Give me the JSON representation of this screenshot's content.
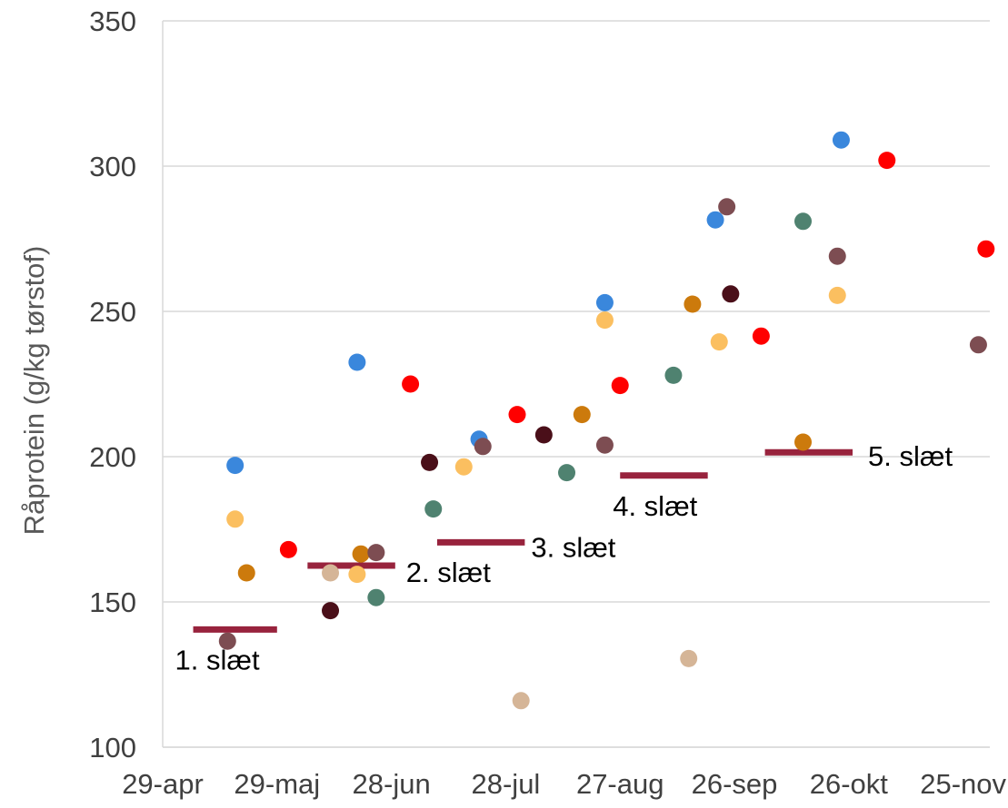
{
  "chart_data": {
    "type": "scatter",
    "title": "",
    "xlabel": "",
    "ylabel": "Råprotein (g/kg tørstof)",
    "x_axis_type": "date",
    "xlim": [
      "2023-04-29",
      "2023-12-02"
    ],
    "ylim": [
      100,
      350
    ],
    "y_ticks": [
      100,
      150,
      200,
      250,
      300,
      350
    ],
    "x_ticks": [
      {
        "date": "2023-04-29",
        "label": "29-apr"
      },
      {
        "date": "2023-05-29",
        "label": "29-maj"
      },
      {
        "date": "2023-06-28",
        "label": "28-jun"
      },
      {
        "date": "2023-07-28",
        "label": "28-jul"
      },
      {
        "date": "2023-08-27",
        "label": "27-aug"
      },
      {
        "date": "2023-09-26",
        "label": "26-sep"
      },
      {
        "date": "2023-10-26",
        "label": "26-okt"
      },
      {
        "date": "2023-11-25",
        "label": "25-nov"
      }
    ],
    "grid": {
      "horizontal": true,
      "vertical": false
    },
    "legend": "none",
    "colors": {
      "blue": "#3a87dc",
      "light_orange": "#fbbf60",
      "orange": "#cc7a0c",
      "red": "#ff0000",
      "mauve": "#7d4d52",
      "tan": "#d5b597",
      "dark_brown": "#4a0f19",
      "teal": "#4f8270",
      "cut_line": "#98233d"
    },
    "points": [
      {
        "x": "2023-05-18",
        "y": 197,
        "color": "blue"
      },
      {
        "x": "2023-05-18",
        "y": 178.5,
        "color": "light_orange"
      },
      {
        "x": "2023-05-21",
        "y": 160,
        "color": "orange"
      },
      {
        "x": "2023-05-16",
        "y": 136.5,
        "color": "mauve"
      },
      {
        "x": "2023-06-01",
        "y": 168,
        "color": "red"
      },
      {
        "x": "2023-06-12",
        "y": 160,
        "color": "tan"
      },
      {
        "x": "2023-06-12",
        "y": 147,
        "color": "dark_brown"
      },
      {
        "x": "2023-06-19",
        "y": 232.5,
        "color": "blue"
      },
      {
        "x": "2023-06-19",
        "y": 159.5,
        "color": "light_orange"
      },
      {
        "x": "2023-06-20",
        "y": 166.5,
        "color": "orange"
      },
      {
        "x": "2023-06-24",
        "y": 167,
        "color": "mauve"
      },
      {
        "x": "2023-06-24",
        "y": 151.5,
        "color": "teal"
      },
      {
        "x": "2023-07-03",
        "y": 225,
        "color": "red"
      },
      {
        "x": "2023-07-08",
        "y": 198,
        "color": "dark_brown"
      },
      {
        "x": "2023-07-09",
        "y": 182,
        "color": "teal"
      },
      {
        "x": "2023-07-17",
        "y": 196.5,
        "color": "light_orange"
      },
      {
        "x": "2023-07-21",
        "y": 206,
        "color": "blue"
      },
      {
        "x": "2023-07-22",
        "y": 203.5,
        "color": "mauve"
      },
      {
        "x": "2023-07-31",
        "y": 214.5,
        "color": "red"
      },
      {
        "x": "2023-08-01",
        "y": 116,
        "color": "tan"
      },
      {
        "x": "2023-08-07",
        "y": 207.5,
        "color": "dark_brown"
      },
      {
        "x": "2023-08-13",
        "y": 194.5,
        "color": "teal"
      },
      {
        "x": "2023-08-17",
        "y": 214.5,
        "color": "orange"
      },
      {
        "x": "2023-08-23",
        "y": 253,
        "color": "blue"
      },
      {
        "x": "2023-08-23",
        "y": 247,
        "color": "light_orange"
      },
      {
        "x": "2023-08-23",
        "y": 204,
        "color": "mauve"
      },
      {
        "x": "2023-08-27",
        "y": 224.5,
        "color": "red"
      },
      {
        "x": "2023-09-10",
        "y": 228,
        "color": "teal"
      },
      {
        "x": "2023-09-14",
        "y": 130.5,
        "color": "tan"
      },
      {
        "x": "2023-09-15",
        "y": 252.5,
        "color": "orange"
      },
      {
        "x": "2023-09-21",
        "y": 281.5,
        "color": "blue"
      },
      {
        "x": "2023-09-24",
        "y": 286,
        "color": "mauve"
      },
      {
        "x": "2023-09-25",
        "y": 256,
        "color": "dark_brown"
      },
      {
        "x": "2023-09-22",
        "y": 239.5,
        "color": "light_orange"
      },
      {
        "x": "2023-10-03",
        "y": 241.5,
        "color": "red"
      },
      {
        "x": "2023-10-14",
        "y": 281,
        "color": "teal"
      },
      {
        "x": "2023-10-14",
        "y": 205,
        "color": "orange"
      },
      {
        "x": "2023-10-23",
        "y": 269,
        "color": "mauve"
      },
      {
        "x": "2023-10-23",
        "y": 255.5,
        "color": "light_orange"
      },
      {
        "x": "2023-10-24",
        "y": 309,
        "color": "blue"
      },
      {
        "x": "2023-11-05",
        "y": 302,
        "color": "red"
      },
      {
        "x": "2023-11-29",
        "y": 238.5,
        "color": "mauve"
      },
      {
        "x": "2023-12-01",
        "y": 271.5,
        "color": "red"
      }
    ],
    "cut_lines": [
      {
        "label": "1. slæt",
        "x_start": "2023-05-07",
        "x_end": "2023-05-29",
        "y": 140.5,
        "label_position": "below"
      },
      {
        "label": "2. slæt",
        "x_start": "2023-06-06",
        "x_end": "2023-06-29",
        "y": 162.5,
        "label_position": "right-below"
      },
      {
        "label": "3. slæt",
        "x_start": "2023-07-10",
        "x_end": "2023-08-02",
        "y": 170.5,
        "label_position": "right"
      },
      {
        "label": "4. slæt",
        "x_start": "2023-08-27",
        "x_end": "2023-09-19",
        "y": 193.5,
        "label_position": "below"
      },
      {
        "label": "5. slæt",
        "x_start": "2023-10-04",
        "x_end": "2023-10-27",
        "y": 201.5,
        "label_position": "right"
      }
    ]
  }
}
